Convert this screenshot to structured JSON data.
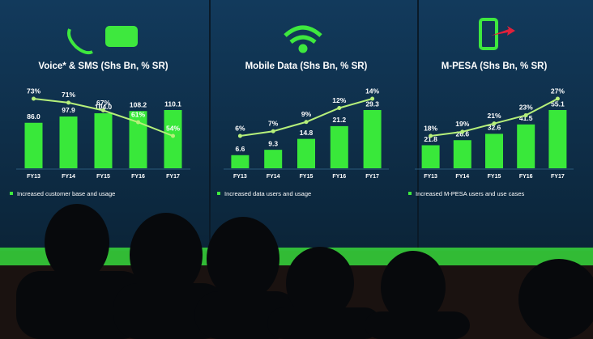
{
  "chart_data": [
    {
      "type": "bar-line",
      "title": "Voice* & SMS (Shs Bn, % SR)",
      "categories": [
        "FY13",
        "FY14",
        "FY15",
        "FY16",
        "FY17"
      ],
      "series": [
        {
          "name": "Revenue",
          "color": "#39e83a",
          "values": [
            86.0,
            97.9,
            104.0,
            108.2,
            110.1
          ],
          "value_labels": [
            "86.0",
            "97.9",
            "104.0",
            "108.2",
            "110.1"
          ]
        },
        {
          "name": "Share of revenue",
          "color": "#b6f07a",
          "values": [
            73,
            71,
            67,
            61,
            54
          ],
          "value_labels": [
            "73%",
            "71%",
            "67%",
            "61%",
            "54%"
          ]
        }
      ],
      "note": "Increased customer base and usage"
    },
    {
      "type": "bar-line",
      "title": "Mobile Data (Shs Bn, % SR)",
      "categories": [
        "FY13",
        "FY14",
        "FY15",
        "FY16",
        "FY17"
      ],
      "series": [
        {
          "name": "Revenue",
          "color": "#39e83a",
          "values": [
            6.6,
            9.3,
            14.8,
            21.2,
            29.3
          ]
        },
        {
          "name": "Share of revenue",
          "color": "#b6f07a",
          "values": [
            6,
            7,
            9,
            12,
            14
          ],
          "value_labels": [
            "6%",
            "7%",
            "9%",
            "12%",
            "14%"
          ]
        }
      ],
      "note": "Increased data users and usage"
    },
    {
      "type": "bar-line",
      "title": "M-PESA (Shs Bn, % SR)",
      "categories": [
        "FY13",
        "FY14",
        "FY15",
        "FY16",
        "FY17"
      ],
      "series": [
        {
          "name": "Revenue",
          "color": "#39e83a",
          "values": [
            21.8,
            26.6,
            32.6,
            41.5,
            55.1
          ]
        },
        {
          "name": "Share of revenue",
          "color": "#b6f07a",
          "values": [
            18,
            19,
            21,
            23,
            27
          ],
          "value_labels": [
            "18%",
            "19%",
            "21%",
            "23%",
            "27%"
          ]
        }
      ],
      "note": "Increased M-PESA users and use cases"
    }
  ]
}
